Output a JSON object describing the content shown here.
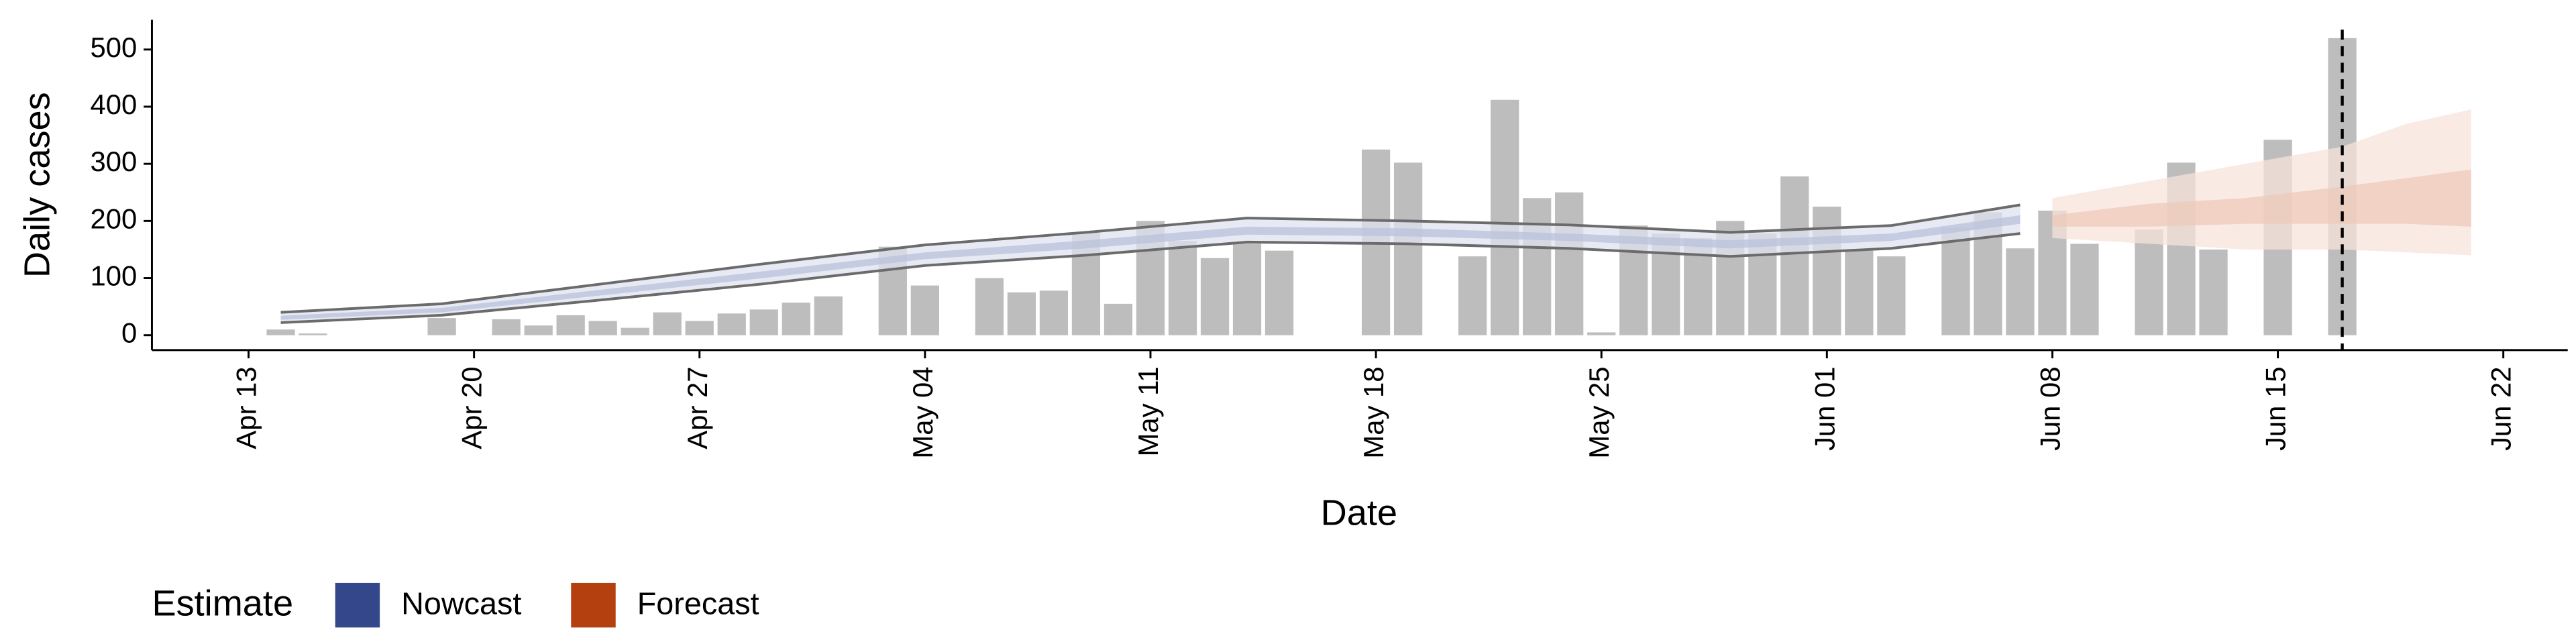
{
  "chart_data": {
    "type": "bar",
    "x_label": "Date",
    "y_label": "Daily cases",
    "legend_title": "Estimate",
    "xlim": [
      "Apr 10",
      "Jun 24"
    ],
    "xticks": [
      "Apr 13",
      "Apr 20",
      "Apr 27",
      "May 04",
      "May 11",
      "May 18",
      "May 25",
      "Jun 01",
      "Jun 08",
      "Jun 15",
      "Jun 22"
    ],
    "ylim": [
      -26,
      552
    ],
    "yticks": [
      0,
      100,
      200,
      300,
      400,
      500
    ],
    "color": "#bdbdbd",
    "vline": "Jun 17",
    "x": [
      "Apr 14",
      "Apr 15",
      "Apr 16",
      "Apr 17",
      "Apr 18",
      "Apr 19",
      "Apr 20",
      "Apr 21",
      "Apr 22",
      "Apr 23",
      "Apr 24",
      "Apr 25",
      "Apr 26",
      "Apr 27",
      "Apr 28",
      "Apr 29",
      "Apr 30",
      "May 01",
      "May 02",
      "May 03",
      "May 04",
      "May 05",
      "May 06",
      "May 07",
      "May 08",
      "May 09",
      "May 10",
      "May 11",
      "May 12",
      "May 13",
      "May 14",
      "May 15",
      "May 16",
      "May 17",
      "May 18",
      "May 19",
      "May 20",
      "May 21",
      "May 22",
      "May 23",
      "May 24",
      "May 25",
      "May 26",
      "May 27",
      "May 28",
      "May 29",
      "May 30",
      "May 31",
      "Jun 01",
      "Jun 02",
      "Jun 03",
      "Jun 04",
      "Jun 05",
      "Jun 06",
      "Jun 07",
      "Jun 08",
      "Jun 09",
      "Jun 10",
      "Jun 11",
      "Jun 12",
      "Jun 13",
      "Jun 14",
      "Jun 15",
      "Jun 16",
      "Jun 17"
    ],
    "values": [
      10,
      3,
      null,
      null,
      null,
      30,
      null,
      28,
      17,
      35,
      25,
      13,
      40,
      25,
      38,
      45,
      57,
      68,
      null,
      155,
      87,
      null,
      100,
      75,
      78,
      180,
      55,
      200,
      165,
      135,
      160,
      148,
      null,
      null,
      325,
      302,
      null,
      138,
      412,
      240,
      250,
      5,
      192,
      178,
      170,
      200,
      178,
      278,
      225,
      148,
      138,
      null,
      188,
      215,
      152,
      218,
      160,
      null,
      185,
      302,
      150,
      null,
      342,
      null,
      520
    ],
    "estimates": [
      {
        "name": "Nowcast",
        "color": "#34478a",
        "band_colors": [
          "#dfe3ef",
          "#b9c1dc"
        ],
        "line_color": "#6b6b6b",
        "x": [
          "Apr 14",
          "Apr 19",
          "Apr 24",
          "Apr 29",
          "May 04",
          "May 09",
          "May 14",
          "May 19",
          "May 24",
          "May 29",
          "Jun 03",
          "Jun 07"
        ],
        "upper_90": [
          40,
          55,
          90,
          125,
          158,
          180,
          205,
          200,
          193,
          180,
          192,
          228
        ],
        "lower_90": [
          22,
          35,
          62,
          90,
          122,
          140,
          163,
          160,
          152,
          138,
          152,
          178
        ],
        "upper_50": [
          34,
          48,
          80,
          112,
          145,
          166,
          190,
          187,
          178,
          166,
          178,
          210
        ],
        "lower_50": [
          27,
          40,
          70,
          100,
          133,
          152,
          176,
          173,
          165,
          152,
          165,
          195
        ]
      },
      {
        "name": "Forecast",
        "color": "#b5400f",
        "band_colors": [
          "#f7e3db",
          "#eecab9"
        ],
        "line_color": null,
        "x": [
          "Jun 08",
          "Jun 11",
          "Jun 14",
          "Jun 17",
          "Jun 19",
          "Jun 21"
        ],
        "upper_90": [
          240,
          270,
          300,
          330,
          370,
          395
        ],
        "lower_90": [
          170,
          160,
          150,
          150,
          145,
          140
        ],
        "upper_50": [
          210,
          230,
          240,
          260,
          275,
          290
        ],
        "lower_50": [
          190,
          190,
          195,
          195,
          195,
          190
        ]
      }
    ]
  }
}
